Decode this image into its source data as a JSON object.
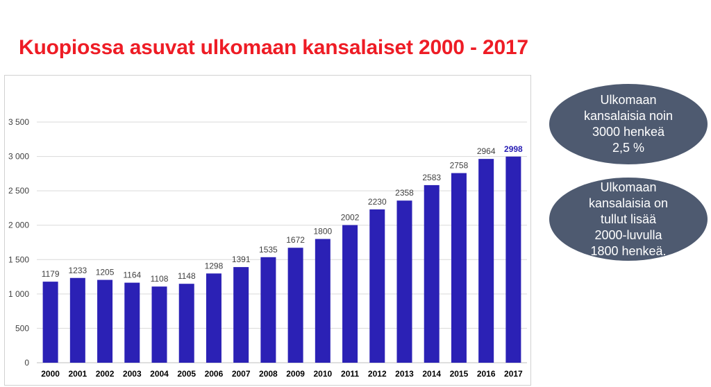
{
  "title": "Kuopiossa asuvat ulkomaan kansalaiset 2000 - 2017",
  "chart_data": {
    "type": "bar",
    "categories": [
      "2000",
      "2001",
      "2002",
      "2003",
      "2004",
      "2005",
      "2006",
      "2007",
      "2008",
      "2009",
      "2010",
      "2011",
      "2012",
      "2013",
      "2014",
      "2015",
      "2016",
      "2017"
    ],
    "values": [
      1179,
      1233,
      1205,
      1164,
      1108,
      1148,
      1298,
      1391,
      1535,
      1672,
      1800,
      2002,
      2230,
      2358,
      2583,
      2758,
      2964,
      2998
    ],
    "data_labels": [
      "1179",
      "1233",
      "1205",
      "1164",
      "1108",
      "1148",
      "1298",
      "1391",
      "1535",
      "1672",
      "1800",
      "2002",
      "2230",
      "2358",
      "2583",
      "2758",
      "2964",
      "2998"
    ],
    "ylim": [
      0,
      3500
    ],
    "yticks": [
      0,
      500,
      1000,
      1500,
      2000,
      2500,
      3000,
      3500
    ],
    "ytick_labels": [
      "0",
      "500",
      "1 000",
      "1 500",
      "2 000",
      "2 500",
      "3 000",
      "3 500"
    ],
    "grid": true,
    "bar_color": "#2b21b5",
    "highlight_label_color": "#2b21b5"
  },
  "callouts": [
    {
      "text": "Ulkomaan\nkansalaisia noin\n3000 henkeä\n2,5 %"
    },
    {
      "text": "Ulkomaan\nkansalaisia on\ntullut lisää\n2000-luvulla\n1800 henkeä."
    }
  ]
}
